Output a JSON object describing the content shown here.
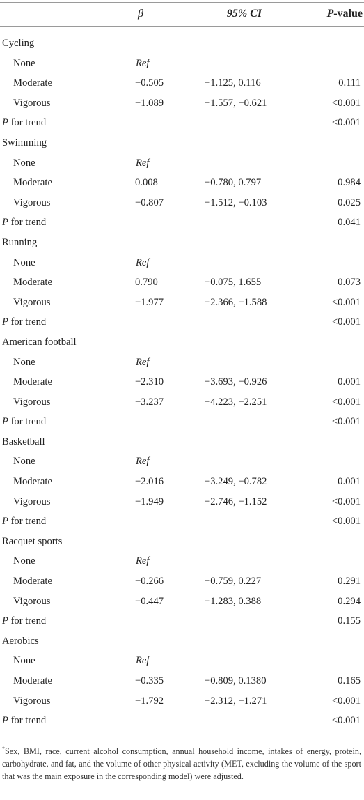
{
  "header": {
    "beta": "β",
    "ci": "95% CI",
    "p_prefix": "P",
    "p_suffix": "-value"
  },
  "sections": [
    {
      "name": "Cycling",
      "rows": [
        {
          "label": "None",
          "beta": "Ref",
          "ci": "",
          "p": ""
        },
        {
          "label": "Moderate",
          "beta": "−0.505",
          "ci": "−1.125, 0.116",
          "p": "0.111"
        },
        {
          "label": "Vigorous",
          "beta": "−1.089",
          "ci": "−1.557, −0.621",
          "p": "<0.001"
        }
      ],
      "trend_p": "<0.001"
    },
    {
      "name": "Swimming",
      "rows": [
        {
          "label": "None",
          "beta": "Ref",
          "ci": "",
          "p": ""
        },
        {
          "label": "Moderate",
          "beta": "0.008",
          "ci": "−0.780, 0.797",
          "p": "0.984"
        },
        {
          "label": "Vigorous",
          "beta": "−0.807",
          "ci": "−1.512, −0.103",
          "p": "0.025"
        }
      ],
      "trend_p": "0.041"
    },
    {
      "name": "Running",
      "rows": [
        {
          "label": "None",
          "beta": "Ref",
          "ci": "",
          "p": ""
        },
        {
          "label": "Moderate",
          "beta": "0.790",
          "ci": "−0.075, 1.655",
          "p": "0.073"
        },
        {
          "label": "Vigorous",
          "beta": "−1.977",
          "ci": "−2.366, −1.588",
          "p": "<0.001"
        }
      ],
      "trend_p": "<0.001"
    },
    {
      "name": "American football",
      "rows": [
        {
          "label": "None",
          "beta": "Ref",
          "ci": "",
          "p": ""
        },
        {
          "label": "Moderate",
          "beta": "−2.310",
          "ci": "−3.693, −0.926",
          "p": "0.001"
        },
        {
          "label": "Vigorous",
          "beta": "−3.237",
          "ci": "−4.223, −2.251",
          "p": "<0.001"
        }
      ],
      "trend_p": "<0.001"
    },
    {
      "name": "Basketball",
      "rows": [
        {
          "label": "None",
          "beta": "Ref",
          "ci": "",
          "p": ""
        },
        {
          "label": "Moderate",
          "beta": "−2.016",
          "ci": "−3.249, −0.782",
          "p": "0.001"
        },
        {
          "label": "Vigorous",
          "beta": "−1.949",
          "ci": "−2.746, −1.152",
          "p": "<0.001"
        }
      ],
      "trend_p": "<0.001"
    },
    {
      "name": "Racquet sports",
      "rows": [
        {
          "label": "None",
          "beta": "Ref",
          "ci": "",
          "p": ""
        },
        {
          "label": "Moderate",
          "beta": "−0.266",
          "ci": "−0.759, 0.227",
          "p": "0.291"
        },
        {
          "label": "Vigorous",
          "beta": "−0.447",
          "ci": "−1.283, 0.388",
          "p": "0.294"
        }
      ],
      "trend_p": "0.155"
    },
    {
      "name": "Aerobics",
      "rows": [
        {
          "label": "None",
          "beta": "Ref",
          "ci": "",
          "p": ""
        },
        {
          "label": "Moderate",
          "beta": "−0.335",
          "ci": "−0.809, 0.1380",
          "p": "0.165"
        },
        {
          "label": "Vigorous",
          "beta": "−1.792",
          "ci": "−2.312, −1.271",
          "p": "<0.001"
        }
      ],
      "trend_p": "<0.001"
    }
  ],
  "trend_label_prefix": "P",
  "trend_label_suffix": " for trend",
  "footnote": {
    "marker": "*",
    "text": "Sex, BMI, race, current alcohol consumption, annual household income, intakes of energy, protein, carbohydrate, and fat, and the volume of other physical activity (MET, excluding the volume of the sport that was the main exposure in the corresponding model) were adjusted."
  }
}
